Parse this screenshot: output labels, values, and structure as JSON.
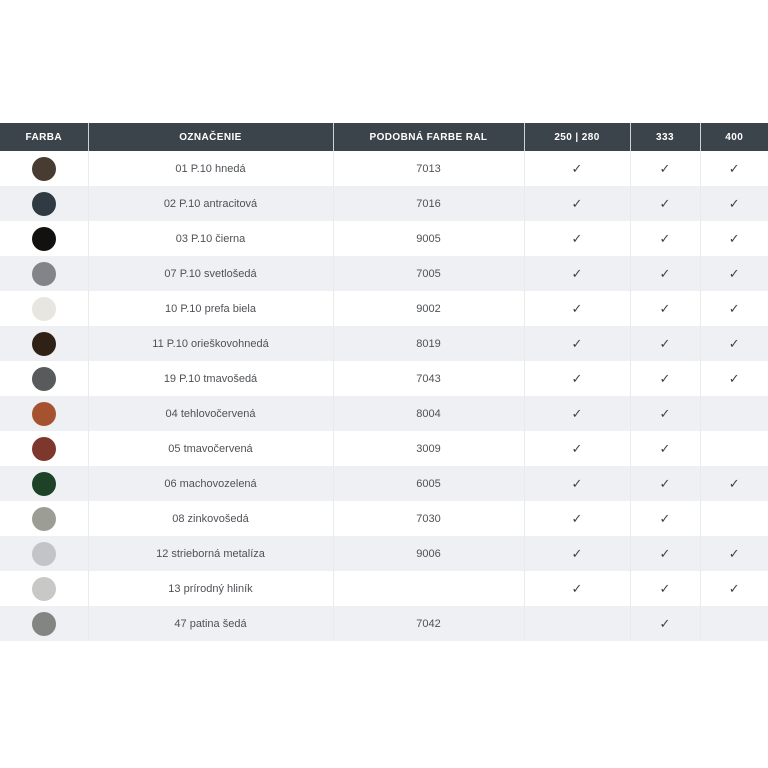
{
  "table": {
    "headers": [
      "FARBA",
      "OZNAČENIE",
      "PODOBNÁ FARBE RAL",
      "250 | 280",
      "333",
      "400"
    ],
    "check_glyph": "✓",
    "rows": [
      {
        "swatch": "#483b31",
        "name": "01 P.10 hnedá",
        "ral": "7013",
        "v250_280": true,
        "v333": true,
        "v400": true
      },
      {
        "swatch": "#303a42",
        "name": "02 P.10 antracitová",
        "ral": "7016",
        "v250_280": true,
        "v333": true,
        "v400": true
      },
      {
        "swatch": "#131110",
        "name": "03 P.10 čierna",
        "ral": "9005",
        "v250_280": true,
        "v333": true,
        "v400": true
      },
      {
        "swatch": "#818489",
        "name": "07 P.10 svetlošedá",
        "ral": "7005",
        "v250_280": true,
        "v333": true,
        "v400": true
      },
      {
        "swatch": "#e7e6e1",
        "name": "10 P.10 prefa biela",
        "ral": "9002",
        "v250_280": true,
        "v333": true,
        "v400": true
      },
      {
        "swatch": "#302116",
        "name": "11 P.10 orieškovohnedá",
        "ral": "8019",
        "v250_280": true,
        "v333": true,
        "v400": true
      },
      {
        "swatch": "#575b5b",
        "name": "19 P.10 tmavošedá",
        "ral": "7043",
        "v250_280": true,
        "v333": true,
        "v400": true
      },
      {
        "swatch": "#a5532f",
        "name": "04 tehlovočervená",
        "ral": "8004",
        "v250_280": true,
        "v333": true,
        "v400": false
      },
      {
        "swatch": "#7d372c",
        "name": "05 tmavočervená",
        "ral": "3009",
        "v250_280": true,
        "v333": true,
        "v400": false
      },
      {
        "swatch": "#1d4227",
        "name": "06 machovozelená",
        "ral": "6005",
        "v250_280": true,
        "v333": true,
        "v400": true
      },
      {
        "swatch": "#9c9e96",
        "name": "08 zinkovošedá",
        "ral": "7030",
        "v250_280": true,
        "v333": true,
        "v400": false
      },
      {
        "swatch": "#c2c4c8",
        "name": "12 strieborná metalíza",
        "ral": "9006",
        "v250_280": true,
        "v333": true,
        "v400": true
      },
      {
        "swatch": "#c8c9c7",
        "name": "13 prírodný hliník",
        "ral": "",
        "v250_280": true,
        "v333": true,
        "v400": true
      },
      {
        "swatch": "#838583",
        "name": "47 patina šedá",
        "ral": "7042",
        "v250_280": false,
        "v333": true,
        "v400": false
      }
    ]
  },
  "colors": {
    "header_bg": "#3c444b",
    "header_text": "#ffffff",
    "row_stripe": "#eef0f3",
    "body_text": "#4e5256",
    "check": "#3e4347"
  }
}
